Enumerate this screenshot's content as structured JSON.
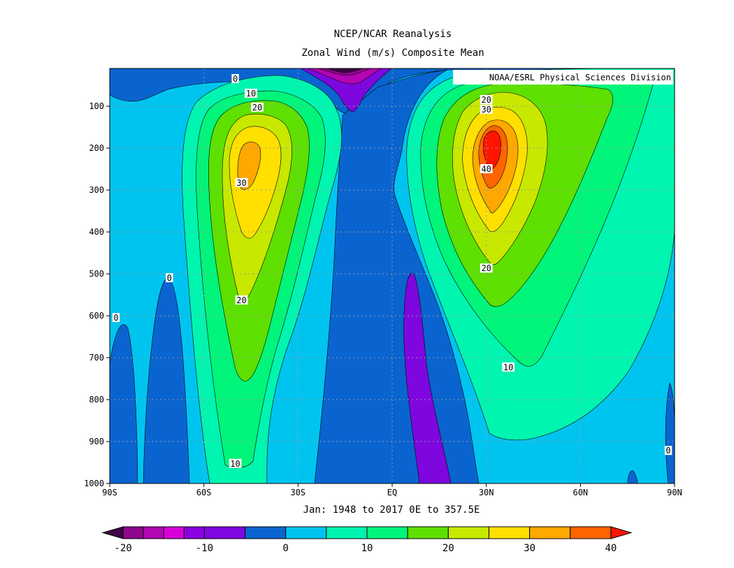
{
  "chart_data": {
    "type": "contour",
    "title": "NCEP/NCAR Reanalysis",
    "subtitle": "Zonal Wind (m/s) Composite Mean",
    "credit": "NOAA/ESRL Physical Sciences Division",
    "caption": "Jan: 1948 to 2017 0E to 357.5E",
    "x": {
      "range": [
        -90,
        90
      ],
      "ticks": [
        {
          "value": -90,
          "label": "90S"
        },
        {
          "value": -60,
          "label": "60S"
        },
        {
          "value": -30,
          "label": "30S"
        },
        {
          "value": 0,
          "label": "EQ"
        },
        {
          "value": 30,
          "label": "30N"
        },
        {
          "value": 60,
          "label": "60N"
        },
        {
          "value": 90,
          "label": "90N"
        }
      ]
    },
    "y": {
      "range": [
        1000,
        10
      ],
      "ticks": [
        100,
        200,
        300,
        400,
        500,
        600,
        700,
        800,
        900,
        1000
      ]
    },
    "grid": true,
    "contour_labels": [
      {
        "value": "0",
        "lat": -50,
        "p": 35
      },
      {
        "value": "10",
        "lat": -45,
        "p": 70
      },
      {
        "value": "20",
        "lat": -43,
        "p": 103
      },
      {
        "value": "30",
        "lat": -48,
        "p": 283
      },
      {
        "value": "20",
        "lat": -48,
        "p": 563
      },
      {
        "value": "10",
        "lat": -50,
        "p": 953
      },
      {
        "value": "0",
        "lat": -71,
        "p": 510
      },
      {
        "value": "0",
        "lat": -88,
        "p": 605
      },
      {
        "value": "20",
        "lat": 30,
        "p": 85
      },
      {
        "value": "30",
        "lat": 30,
        "p": 108
      },
      {
        "value": "40",
        "lat": 30,
        "p": 250
      },
      {
        "value": "20",
        "lat": 30,
        "p": 487
      },
      {
        "value": "10",
        "lat": 37,
        "p": 723
      },
      {
        "value": "0",
        "lat": 88,
        "p": 922
      }
    ],
    "colorbar": {
      "labels": [
        "-20",
        "-10",
        "0",
        "10",
        "20",
        "30",
        "40"
      ],
      "label_values": [
        -20,
        -10,
        0,
        10,
        20,
        30,
        40
      ],
      "min": -22.5,
      "max": 42.5,
      "bins": [
        {
          "from": null,
          "to": -20,
          "color": "#3d0542"
        },
        {
          "from": -20,
          "to": -17.5,
          "color": "#8e068e"
        },
        {
          "from": -17.5,
          "to": -15,
          "color": "#b305b3"
        },
        {
          "from": -15,
          "to": -12.5,
          "color": "#d800d8"
        },
        {
          "from": -12.5,
          "to": -10,
          "color": "#8c00e2"
        },
        {
          "from": -10,
          "to": -5,
          "color": "#7d07de"
        },
        {
          "from": -5,
          "to": 0,
          "color": "#0a64d0"
        },
        {
          "from": 0,
          "to": 5,
          "color": "#00c4f0"
        },
        {
          "from": 5,
          "to": 10,
          "color": "#00f5b0"
        },
        {
          "from": 10,
          "to": 15,
          "color": "#00f57a"
        },
        {
          "from": 15,
          "to": 20,
          "color": "#5ee000"
        },
        {
          "from": 20,
          "to": 25,
          "color": "#c8e800"
        },
        {
          "from": 25,
          "to": 30,
          "color": "#ffe000"
        },
        {
          "from": 30,
          "to": 35,
          "color": "#ffa800"
        },
        {
          "from": 35,
          "to": 40,
          "color": "#ff6400"
        },
        {
          "from": 40,
          "to": null,
          "color": "#ff1400"
        }
      ]
    }
  }
}
